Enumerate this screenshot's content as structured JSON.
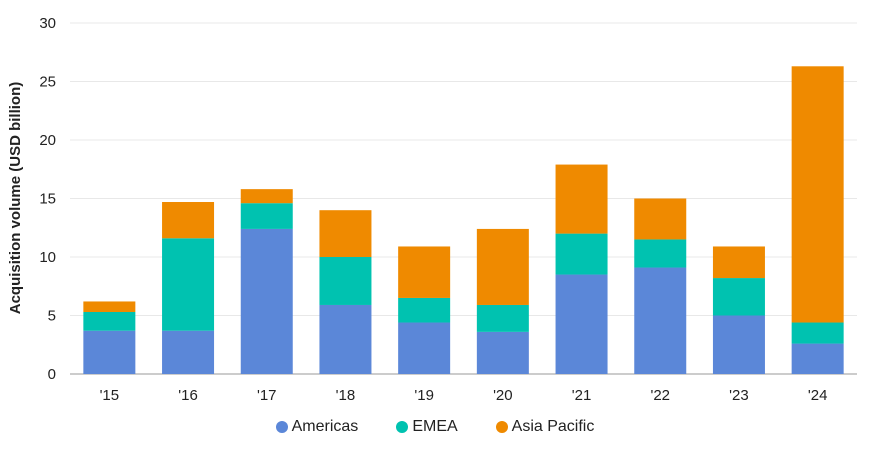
{
  "chart_data": {
    "type": "bar",
    "stacked": true,
    "title": "",
    "xlabel": "",
    "ylabel": "Acquisition volume (USD billion)",
    "ylim": [
      0,
      30
    ],
    "yticks": [
      0,
      5,
      10,
      15,
      20,
      25,
      30
    ],
    "grid": true,
    "legend_position": "bottom",
    "categories": [
      "'15",
      "'16",
      "'17",
      "'18",
      "'19",
      "'20",
      "'21",
      "'22",
      "'23",
      "'24"
    ],
    "series": [
      {
        "name": "Americas",
        "color": "#5b87d8",
        "values": [
          3.7,
          3.7,
          12.4,
          5.9,
          4.4,
          3.6,
          8.5,
          9.1,
          5.0,
          2.6
        ]
      },
      {
        "name": "EMEA",
        "color": "#00c2b0",
        "values": [
          1.6,
          7.9,
          2.2,
          4.1,
          2.1,
          2.3,
          3.5,
          2.4,
          3.2,
          1.8
        ]
      },
      {
        "name": "Asia Pacific",
        "color": "#ef8a00",
        "values": [
          0.9,
          3.1,
          1.2,
          4.0,
          4.4,
          6.5,
          5.9,
          3.5,
          2.7,
          21.9
        ]
      }
    ]
  }
}
